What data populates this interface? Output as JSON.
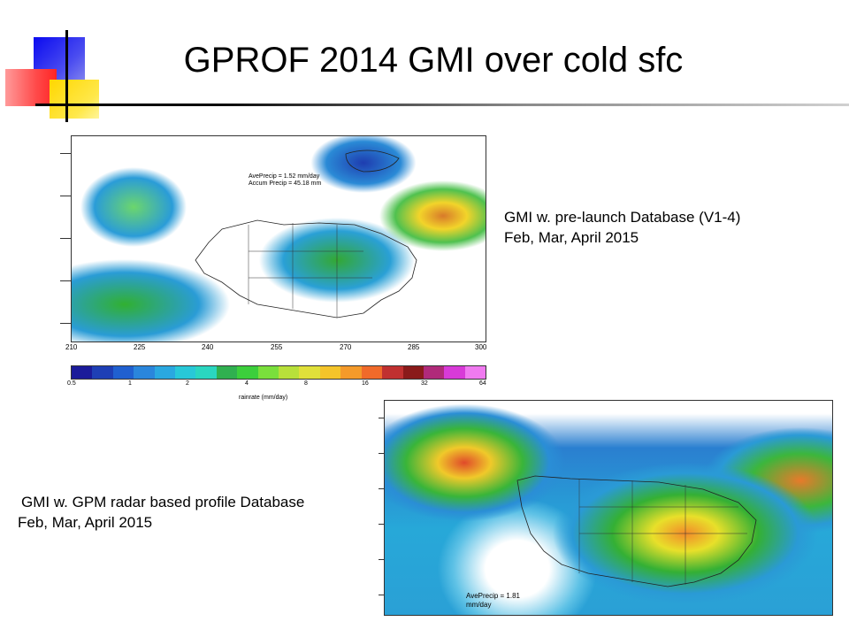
{
  "slide_title": "GPROF 2014 GMI over cold sfc",
  "caption_top": {
    "line1": "GMI w. pre-launch Database (V1-4)",
    "line2": "Feb, Mar, April 2015"
  },
  "caption_bottom": {
    "line1": "GMI w. GPM radar based profile Database",
    "line2": "Feb, Mar, April 2015"
  },
  "map_top": {
    "annotation_line1": "AvePrecip =   1.52 mm/day",
    "annotation_line2": "Accum Precip =  45.18 mm",
    "lon_ticks": [
      "210",
      "225",
      "240",
      "255",
      "270",
      "285",
      "300"
    ],
    "colorbar_ticks": [
      "0.5",
      "1",
      "2",
      "4",
      "8",
      "16",
      "32",
      "64"
    ],
    "colorbar_label": "rainrate (mm/day)",
    "colorbar_colors": [
      "#1b1b9a",
      "#1e3fb5",
      "#2060d0",
      "#2a86dc",
      "#2aa8e0",
      "#28c8d8",
      "#2ad6c0",
      "#30b050",
      "#3ccf3c",
      "#7adf3c",
      "#b8e03a",
      "#e0e03a",
      "#f4c42a",
      "#f49a2a",
      "#f06a2a",
      "#c03030",
      "#8a1a1a",
      "#b02a7a",
      "#d83ad8",
      "#f07af0"
    ]
  },
  "map_bottom": {
    "annotation_line1": "AvePrecip = 1.81",
    "annotation_line2": "mm/day"
  }
}
